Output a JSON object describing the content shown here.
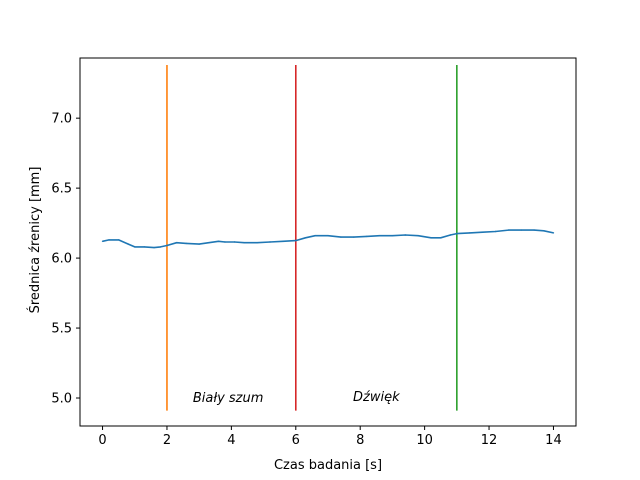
{
  "chart_data": {
    "type": "line",
    "title": "",
    "xlabel": "Czas badania [s]",
    "ylabel": "Średnica źrenicy [mm]",
    "xlim": [
      -0.7,
      14.7
    ],
    "ylim": [
      4.8,
      7.43
    ],
    "xticks": [
      0,
      2,
      4,
      6,
      8,
      10,
      12,
      14
    ],
    "yticks": [
      5.0,
      5.5,
      6.0,
      6.5,
      7.0
    ],
    "grid": false,
    "series": [
      {
        "color": "#1f77b4",
        "x": [
          0,
          0.2,
          0.5,
          0.8,
          1.0,
          1.3,
          1.6,
          1.8,
          2.0,
          2.3,
          2.6,
          3.0,
          3.3,
          3.6,
          3.8,
          4.1,
          4.4,
          4.8,
          5.2,
          5.6,
          6.0,
          6.3,
          6.6,
          7.0,
          7.4,
          7.8,
          8.2,
          8.6,
          9.0,
          9.4,
          9.8,
          10.2,
          10.5,
          10.8,
          11.0,
          11.4,
          11.8,
          12.2,
          12.6,
          13.0,
          13.4,
          13.7,
          14.0
        ],
        "y": [
          6.12,
          6.13,
          6.13,
          6.1,
          6.08,
          6.08,
          6.075,
          6.08,
          6.09,
          6.11,
          6.105,
          6.1,
          6.11,
          6.12,
          6.115,
          6.115,
          6.11,
          6.11,
          6.115,
          6.12,
          6.125,
          6.145,
          6.16,
          6.16,
          6.15,
          6.15,
          6.155,
          6.16,
          6.16,
          6.165,
          6.16,
          6.145,
          6.145,
          6.165,
          6.175,
          6.18,
          6.185,
          6.19,
          6.2,
          6.2,
          6.2,
          6.195,
          6.18
        ]
      }
    ],
    "vlines": [
      {
        "x": 2,
        "color": "#ff7f0e",
        "y0": 4.91,
        "y1": 7.38
      },
      {
        "x": 6,
        "color": "#d62728",
        "y0": 4.91,
        "y1": 7.38
      },
      {
        "x": 11,
        "color": "#2ca02c",
        "y0": 4.91,
        "y1": 7.38
      }
    ],
    "annotations": [
      {
        "text": "Biały szum",
        "x": 3.9,
        "y": 4.97
      },
      {
        "text": "Dźwięk",
        "x": 8.5,
        "y": 4.98
      }
    ]
  }
}
